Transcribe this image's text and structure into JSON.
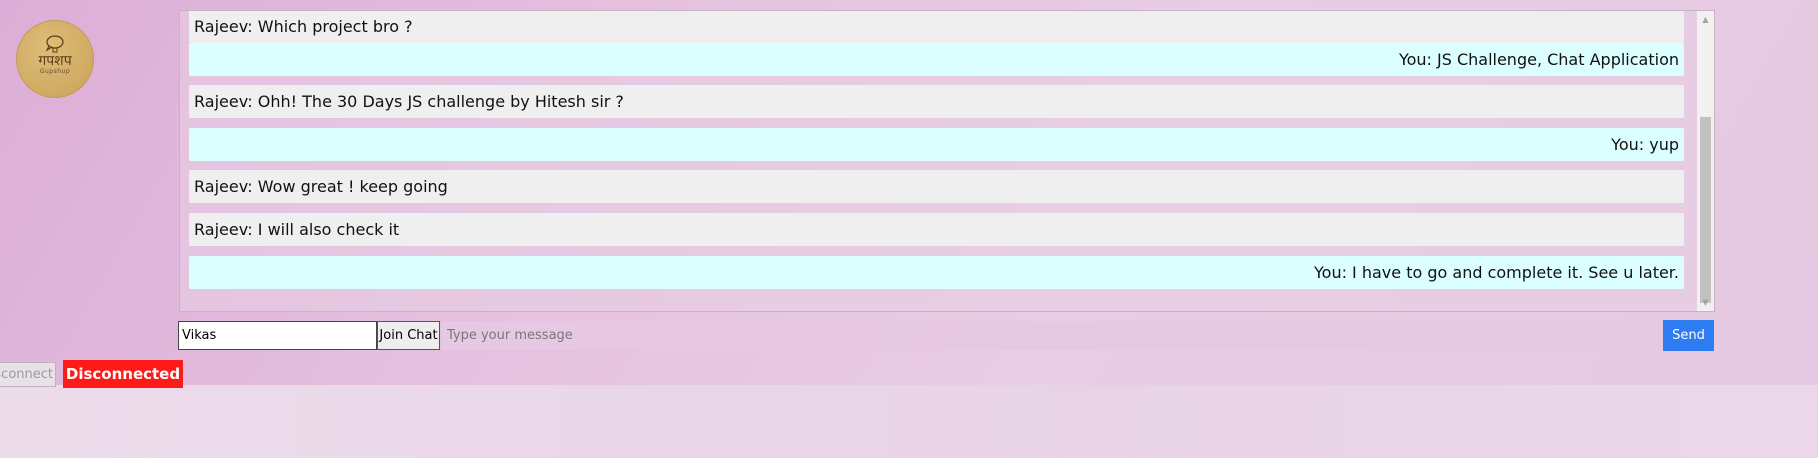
{
  "logo": {
    "title": "गपशप",
    "subtitle": "Gupshup",
    "icon": "lightbulb-speech-icon"
  },
  "chat": {
    "messages": [
      {
        "sender": "other",
        "text": "Rajeev: Which project bro ?"
      },
      {
        "sender": "you",
        "text": "You: JS Challenge, Chat Application"
      },
      {
        "sender": "other",
        "text": "Rajeev: Ohh! The 30 Days JS challenge by Hitesh sir ?"
      },
      {
        "sender": "you",
        "text": "You: yup"
      },
      {
        "sender": "other",
        "text": "Rajeev: Wow great ! keep going"
      },
      {
        "sender": "other",
        "text": "Rajeev: I will also check it"
      },
      {
        "sender": "you",
        "text": "You: I have to go and complete it. See u later."
      }
    ]
  },
  "form": {
    "name_value": "Vikas",
    "join_label": "Join Chat",
    "message_placeholder": "Type your message",
    "send_label": "Send"
  },
  "status": {
    "disconnect_label": "Disconnect",
    "status_text": "Disconnected",
    "status_color": "#ff1a1a"
  },
  "colors": {
    "other_message_bg": "#efefef",
    "you_message_bg": "#dbffff",
    "send_button": "#2f7bf1"
  }
}
